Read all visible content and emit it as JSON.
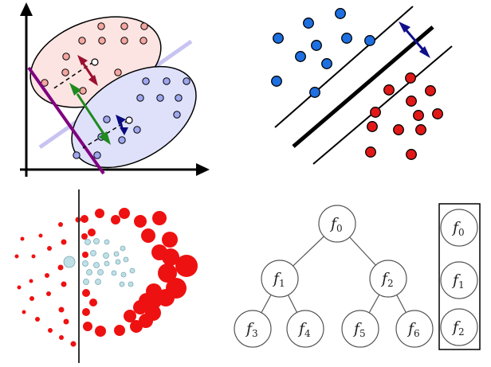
{
  "panels": {
    "lda": {
      "points_class_a": 12,
      "points_class_b": 11,
      "colors": {
        "class_a_fill": "#f4a6a0",
        "class_a_region": "#fbe4e2",
        "class_b_fill": "#9ea6ef",
        "class_b_region": "#dfe1fb",
        "projection_line": "#800080",
        "separator": "#c7c4f2",
        "between_arrow": "#1f8a1f",
        "within_arrow_a": "#9b1030",
        "within_arrow_b": "#0a0a80"
      }
    },
    "svm": {
      "colors": {
        "class_a": "#1e6fe0",
        "class_b": "#e01818",
        "margin_arrow": "#10108a"
      }
    },
    "density_split": {
      "colors": {
        "outer": "#ee1111",
        "inner": "#bfe0e6",
        "split_line": "#333333"
      }
    },
    "tree": {
      "nodes": [
        {
          "id": "f0",
          "label": "f",
          "sub": "0"
        },
        {
          "id": "f1",
          "label": "f",
          "sub": "1"
        },
        {
          "id": "f2",
          "label": "f",
          "sub": "2"
        },
        {
          "id": "f3",
          "label": "f",
          "sub": "3"
        },
        {
          "id": "f4",
          "label": "f",
          "sub": "4"
        },
        {
          "id": "f5",
          "label": "f",
          "sub": "5"
        },
        {
          "id": "f6",
          "label": "f",
          "sub": "6"
        }
      ],
      "chain": [
        {
          "id": "c0",
          "label": "f",
          "sub": "0"
        },
        {
          "id": "c1",
          "label": "f",
          "sub": "1"
        },
        {
          "id": "c2",
          "label": "f",
          "sub": "2"
        }
      ]
    }
  }
}
